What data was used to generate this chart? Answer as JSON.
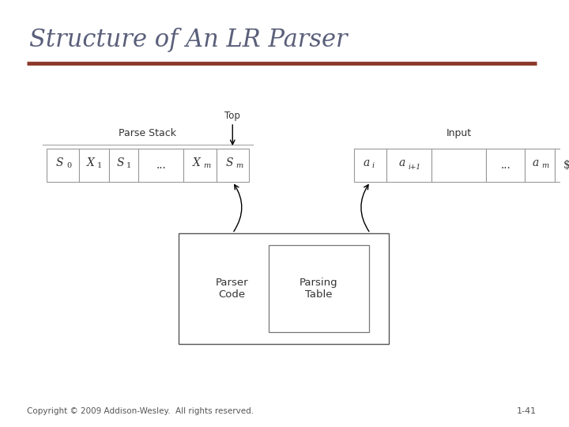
{
  "title": "Structure of An LR Parser",
  "title_color": "#5a5f7a",
  "title_fontsize": 22,
  "divider_color": "#8B3A2A",
  "bg_color": "#ffffff",
  "copyright": "Copyright © 2009 Addison-Wesley.  All rights reserved.",
  "copyright_fontsize": 7.5,
  "page_num": "1-41",
  "page_num_fontsize": 8,
  "stack_label": "Parse Stack",
  "top_label": "Top",
  "input_label": "Input",
  "text_color": "#333333",
  "cell_line_color": "#999999",
  "line_color": "#aaaaaa"
}
